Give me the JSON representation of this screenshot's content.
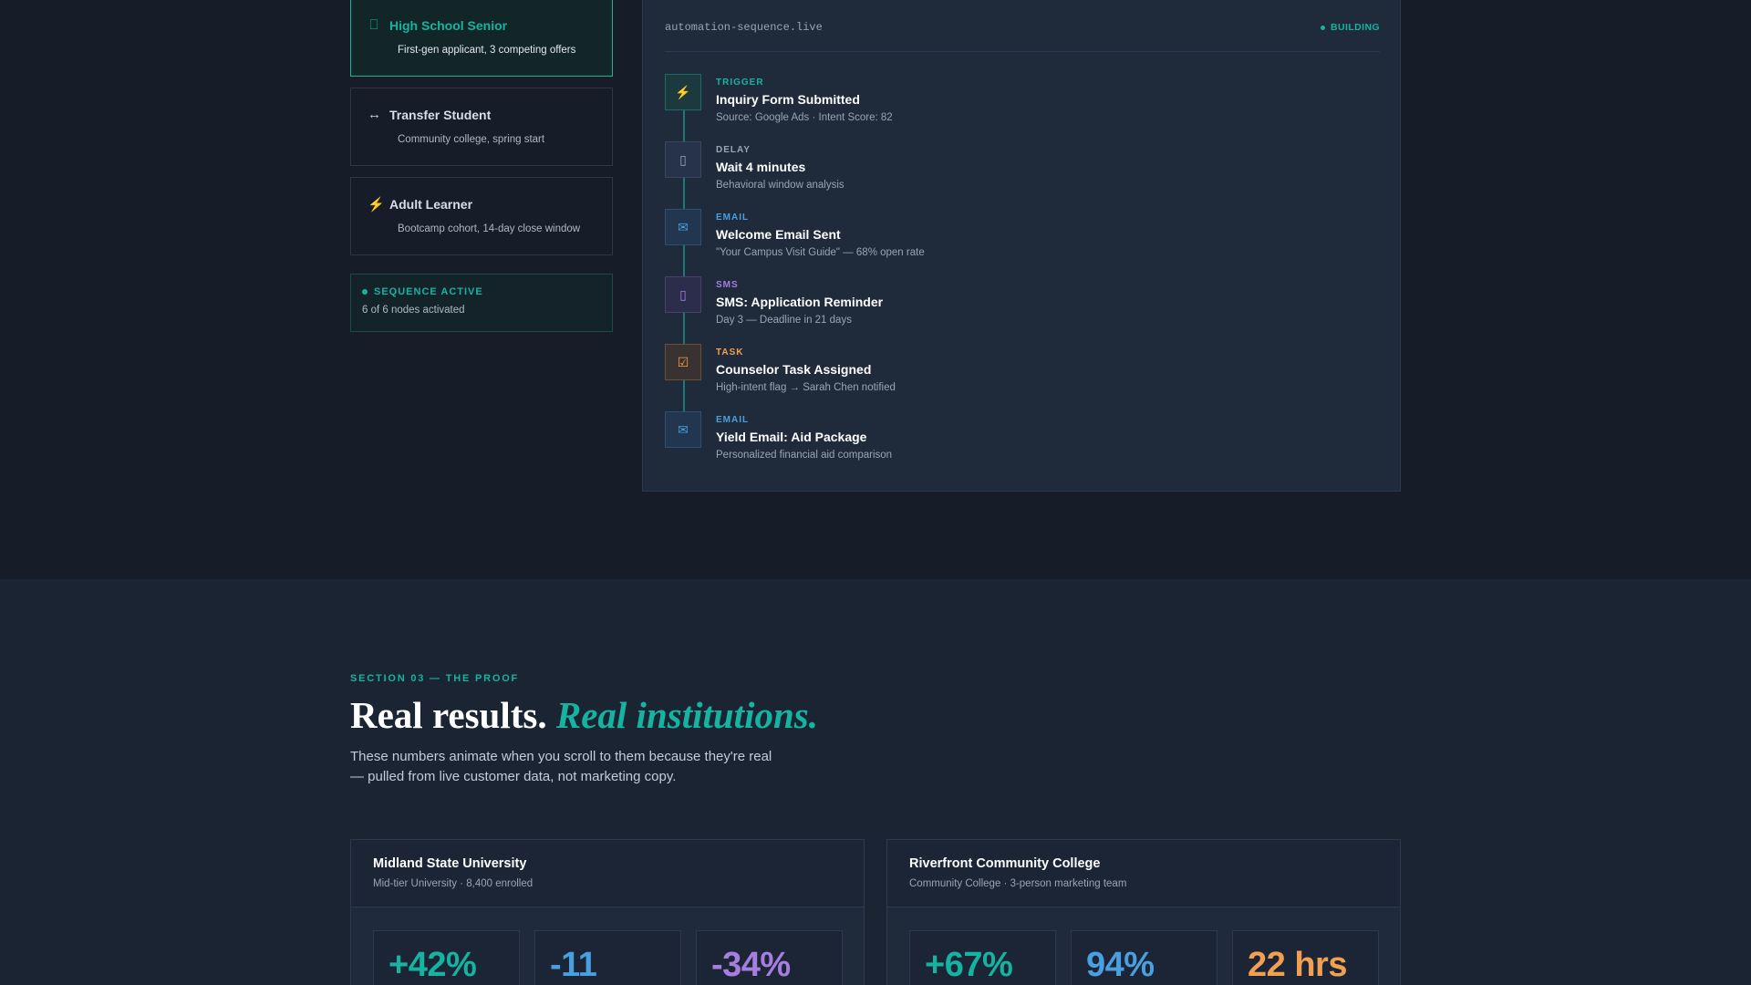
{
  "personas": [
    {
      "icon": "graduation-icon",
      "glyph": "⎕",
      "title": "High School Senior",
      "desc": "First-gen applicant, 3 competing offers",
      "active": true
    },
    {
      "icon": "transfer-arrows-icon",
      "glyph": "↔",
      "title": "Transfer Student",
      "desc": "Community college, spring start",
      "active": false
    },
    {
      "icon": "lightning-icon",
      "glyph": "⚡",
      "title": "Adult Learner",
      "desc": "Bootcamp cohort, 14-day close window",
      "active": false
    }
  ],
  "sequence_status": {
    "label": "SEQUENCE ACTIVE",
    "sub": "6 of 6 nodes activated"
  },
  "automation": {
    "url": "automation-sequence.live",
    "status": "BUILDING",
    "nodes": [
      {
        "type": "TRIGGER",
        "title": "Inquiry Form Submitted",
        "sub": "Source: Google Ads · Intent Score: 82",
        "icon": "lightning-icon",
        "glyph": "⚡",
        "color": "#16b3a0"
      },
      {
        "type": "DELAY",
        "title": "Wait 4 minutes",
        "sub": "Behavioral window analysis",
        "icon": "clock-icon",
        "glyph": "▯",
        "color": "#9aa5b4"
      },
      {
        "type": "EMAIL",
        "title": "Welcome Email Sent",
        "sub": "\"Your Campus Visit Guide\" — 68% open rate",
        "icon": "envelope-icon",
        "glyph": "✉",
        "color": "#4a9fe0"
      },
      {
        "type": "SMS",
        "title": "SMS: Application Reminder",
        "sub": "Day 3 — Deadline in 21 days",
        "icon": "phone-icon",
        "glyph": "▯",
        "color": "#a57ee0"
      },
      {
        "type": "TASK",
        "title": "Counselor Task Assigned",
        "sub": "High-intent flag → Sarah Chen notified",
        "icon": "checkbox-icon",
        "glyph": "☑",
        "color": "#f0a050"
      },
      {
        "type": "EMAIL",
        "title": "Yield Email: Aid Package",
        "sub": "Personalized financial aid comparison",
        "icon": "envelope-icon",
        "glyph": "✉",
        "color": "#4a9fe0"
      }
    ]
  },
  "proof": {
    "eyebrow": "SECTION 03 — THE PROOF",
    "headline_main": "Real results.",
    "headline_accent": "Real institutions.",
    "lede": "These numbers animate when you scroll to them because they're real — pulled from live customer data, not marketing copy."
  },
  "institutions": [
    {
      "name": "Midland State University",
      "sub": "Mid-tier University · 8,400 enrolled",
      "metrics": [
        {
          "value": "+42%",
          "color": "#16b3a0"
        },
        {
          "value": "-11",
          "color": "#4a9fe0"
        },
        {
          "value": "-34%",
          "color": "#a57ee0"
        }
      ]
    },
    {
      "name": "Riverfront Community College",
      "sub": "Community College · 3-person marketing team",
      "metrics": [
        {
          "value": "+67%",
          "color": "#16b3a0"
        },
        {
          "value": "94%",
          "color": "#4a9fe0"
        },
        {
          "value": "22 hrs",
          "color": "#f0a050"
        }
      ]
    }
  ]
}
